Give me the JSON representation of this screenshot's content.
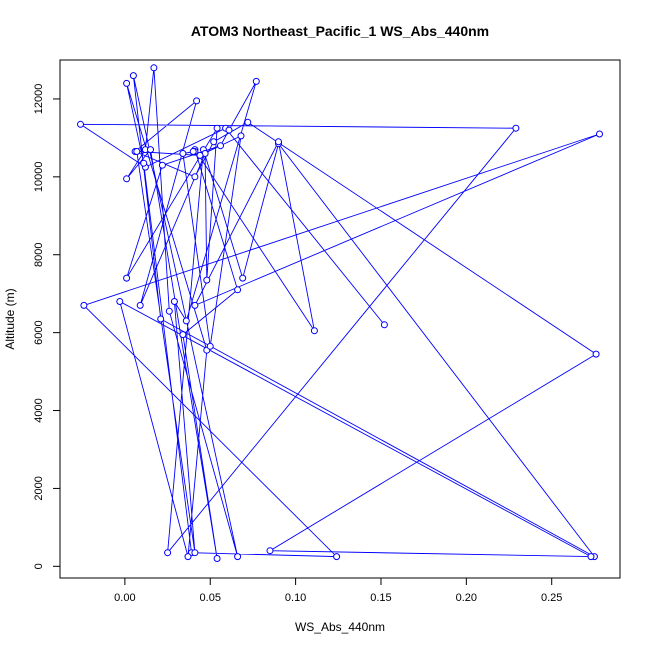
{
  "chart_data": {
    "type": "line",
    "title": "ATOM3 Northeast_Pacific_1 WS_Abs_440nm",
    "xlabel": "WS_Abs_440nm",
    "ylabel": "Altitude (m)",
    "xlim": [
      -0.038,
      0.29
    ],
    "ylim": [
      -300,
      13000
    ],
    "xticks": [
      0.0,
      0.05,
      0.1,
      0.15,
      0.2,
      0.25
    ],
    "xtick_labels": [
      "0.00",
      "0.05",
      "0.10",
      "0.15",
      "0.20",
      "0.25"
    ],
    "yticks": [
      0,
      2000,
      4000,
      6000,
      8000,
      10000,
      12000
    ],
    "ytick_labels": [
      "0",
      "2000",
      "4000",
      "6000",
      "8000",
      "10000",
      "12000"
    ],
    "grid": false,
    "marker": "open-circle",
    "line_color": "#0000ff",
    "series": [
      {
        "x": [
          0.152,
          0.059,
          0.012,
          -0.026,
          0.229,
          0.025,
          0.046,
          0.069,
          0.09,
          0.275,
          0.021,
          0.005,
          0.066,
          0.026,
          0.017,
          0.012,
          0.001,
          0.015,
          0.054,
          0.034,
          0.066,
          0.041,
          0.111,
          0.09,
          0.041,
          0.278,
          -0.024,
          0.124,
          0.039,
          0.011,
          0.001,
          0.048,
          0.037,
          -0.003,
          0.273,
          0.085,
          0.276,
          0.072,
          0.052,
          0.041,
          0.006,
          0.042,
          0.009,
          0.047,
          0.048,
          0.054,
          0.001,
          0.022,
          0.056,
          0.061,
          0.077,
          0.036,
          0.029,
          0.041,
          0.007,
          0.044,
          0.068,
          0.05,
          0.034,
          0.041,
          0.04
        ],
        "y": [
          6200,
          11250,
          10250,
          11350,
          11250,
          350,
          10700,
          7400,
          10850,
          250,
          6350,
          12600,
          250,
          6550,
          12800,
          10700,
          9950,
          10700,
          200,
          5950,
          7100,
          10700,
          6050,
          10900,
          6700,
          11100,
          6700,
          250,
          350,
          10350,
          12400,
          5550,
          250,
          6800,
          250,
          400,
          5450,
          11400,
          10900,
          10000,
          10650,
          11950,
          6700,
          10600,
          7350,
          11250,
          7400,
          10300,
          10800,
          11200,
          12450,
          6300,
          6800,
          350,
          10650,
          10550,
          11050,
          5650,
          10600,
          10650,
          10650
        ]
      }
    ]
  }
}
